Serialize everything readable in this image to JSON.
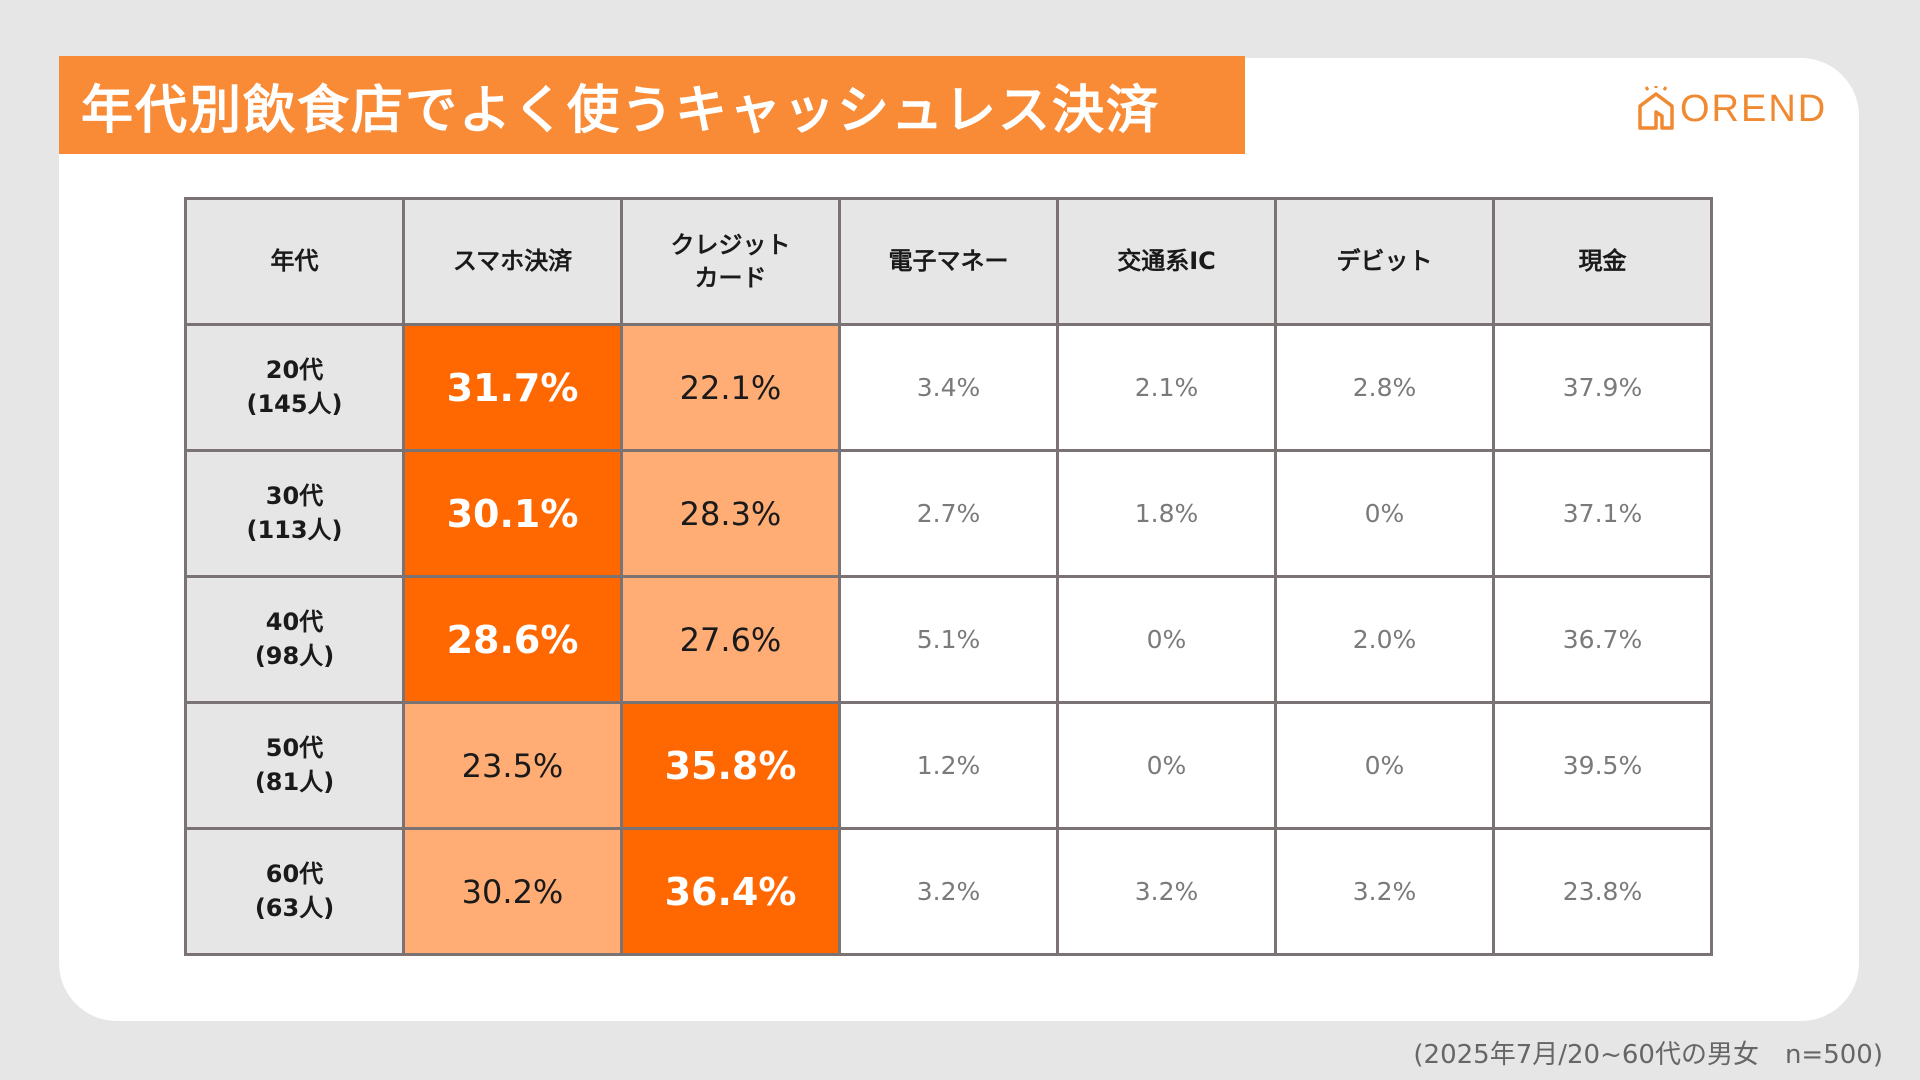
{
  "title": "年代別飲食店でよく使うキャッシュレス決済",
  "brand": {
    "name": "OREND",
    "icon": "house-logo-icon",
    "color": "#f08a32"
  },
  "colors": {
    "banner": "#f98a36",
    "highlight_strong": "#ff6700",
    "highlight_light": "#ffad75",
    "header_bg": "#e6e6e6"
  },
  "chart_data": {
    "type": "table",
    "columns": [
      {
        "lines": [
          "年代"
        ]
      },
      {
        "lines": [
          "スマホ決済"
        ]
      },
      {
        "lines": [
          "クレジット",
          "カード"
        ]
      },
      {
        "lines": [
          "電子マネー"
        ]
      },
      {
        "lines": [
          "交通系IC"
        ]
      },
      {
        "lines": [
          "デビット"
        ]
      },
      {
        "lines": [
          "現金"
        ]
      }
    ],
    "rows": [
      {
        "label": [
          "20代",
          "(145人)"
        ],
        "cells": [
          "31.7%",
          "22.1%",
          "3.4%",
          "2.1%",
          "2.8%",
          "37.9%"
        ],
        "values": [
          31.7,
          22.1,
          3.4,
          2.1,
          2.8,
          37.9
        ],
        "highlight": [
          "strong",
          "light",
          "",
          "",
          "",
          ""
        ]
      },
      {
        "label": [
          "30代",
          "(113人)"
        ],
        "cells": [
          "30.1%",
          "28.3%",
          "2.7%",
          "1.8%",
          "0%",
          "37.1%"
        ],
        "values": [
          30.1,
          28.3,
          2.7,
          1.8,
          0,
          37.1
        ],
        "highlight": [
          "strong",
          "light",
          "",
          "",
          "",
          ""
        ]
      },
      {
        "label": [
          "40代",
          "(98人)"
        ],
        "cells": [
          "28.6%",
          "27.6%",
          "5.1%",
          "0%",
          "2.0%",
          "36.7%"
        ],
        "values": [
          28.6,
          27.6,
          5.1,
          0,
          2.0,
          36.7
        ],
        "highlight": [
          "strong",
          "light",
          "",
          "",
          "",
          ""
        ]
      },
      {
        "label": [
          "50代",
          "(81人)"
        ],
        "cells": [
          "23.5%",
          "35.8%",
          "1.2%",
          "0%",
          "0%",
          "39.5%"
        ],
        "values": [
          23.5,
          35.8,
          1.2,
          0,
          0,
          39.5
        ],
        "highlight": [
          "light",
          "strong",
          "",
          "",
          "",
          ""
        ]
      },
      {
        "label": [
          "60代",
          "(63人)"
        ],
        "cells": [
          "30.2%",
          "36.4%",
          "3.2%",
          "3.2%",
          "3.2%",
          "23.8%"
        ],
        "values": [
          30.2,
          36.4,
          3.2,
          3.2,
          3.2,
          23.8
        ],
        "highlight": [
          "light",
          "strong",
          "",
          "",
          "",
          ""
        ]
      }
    ]
  },
  "footnote": "(2025年7月/20~60代の男女　n=500)"
}
